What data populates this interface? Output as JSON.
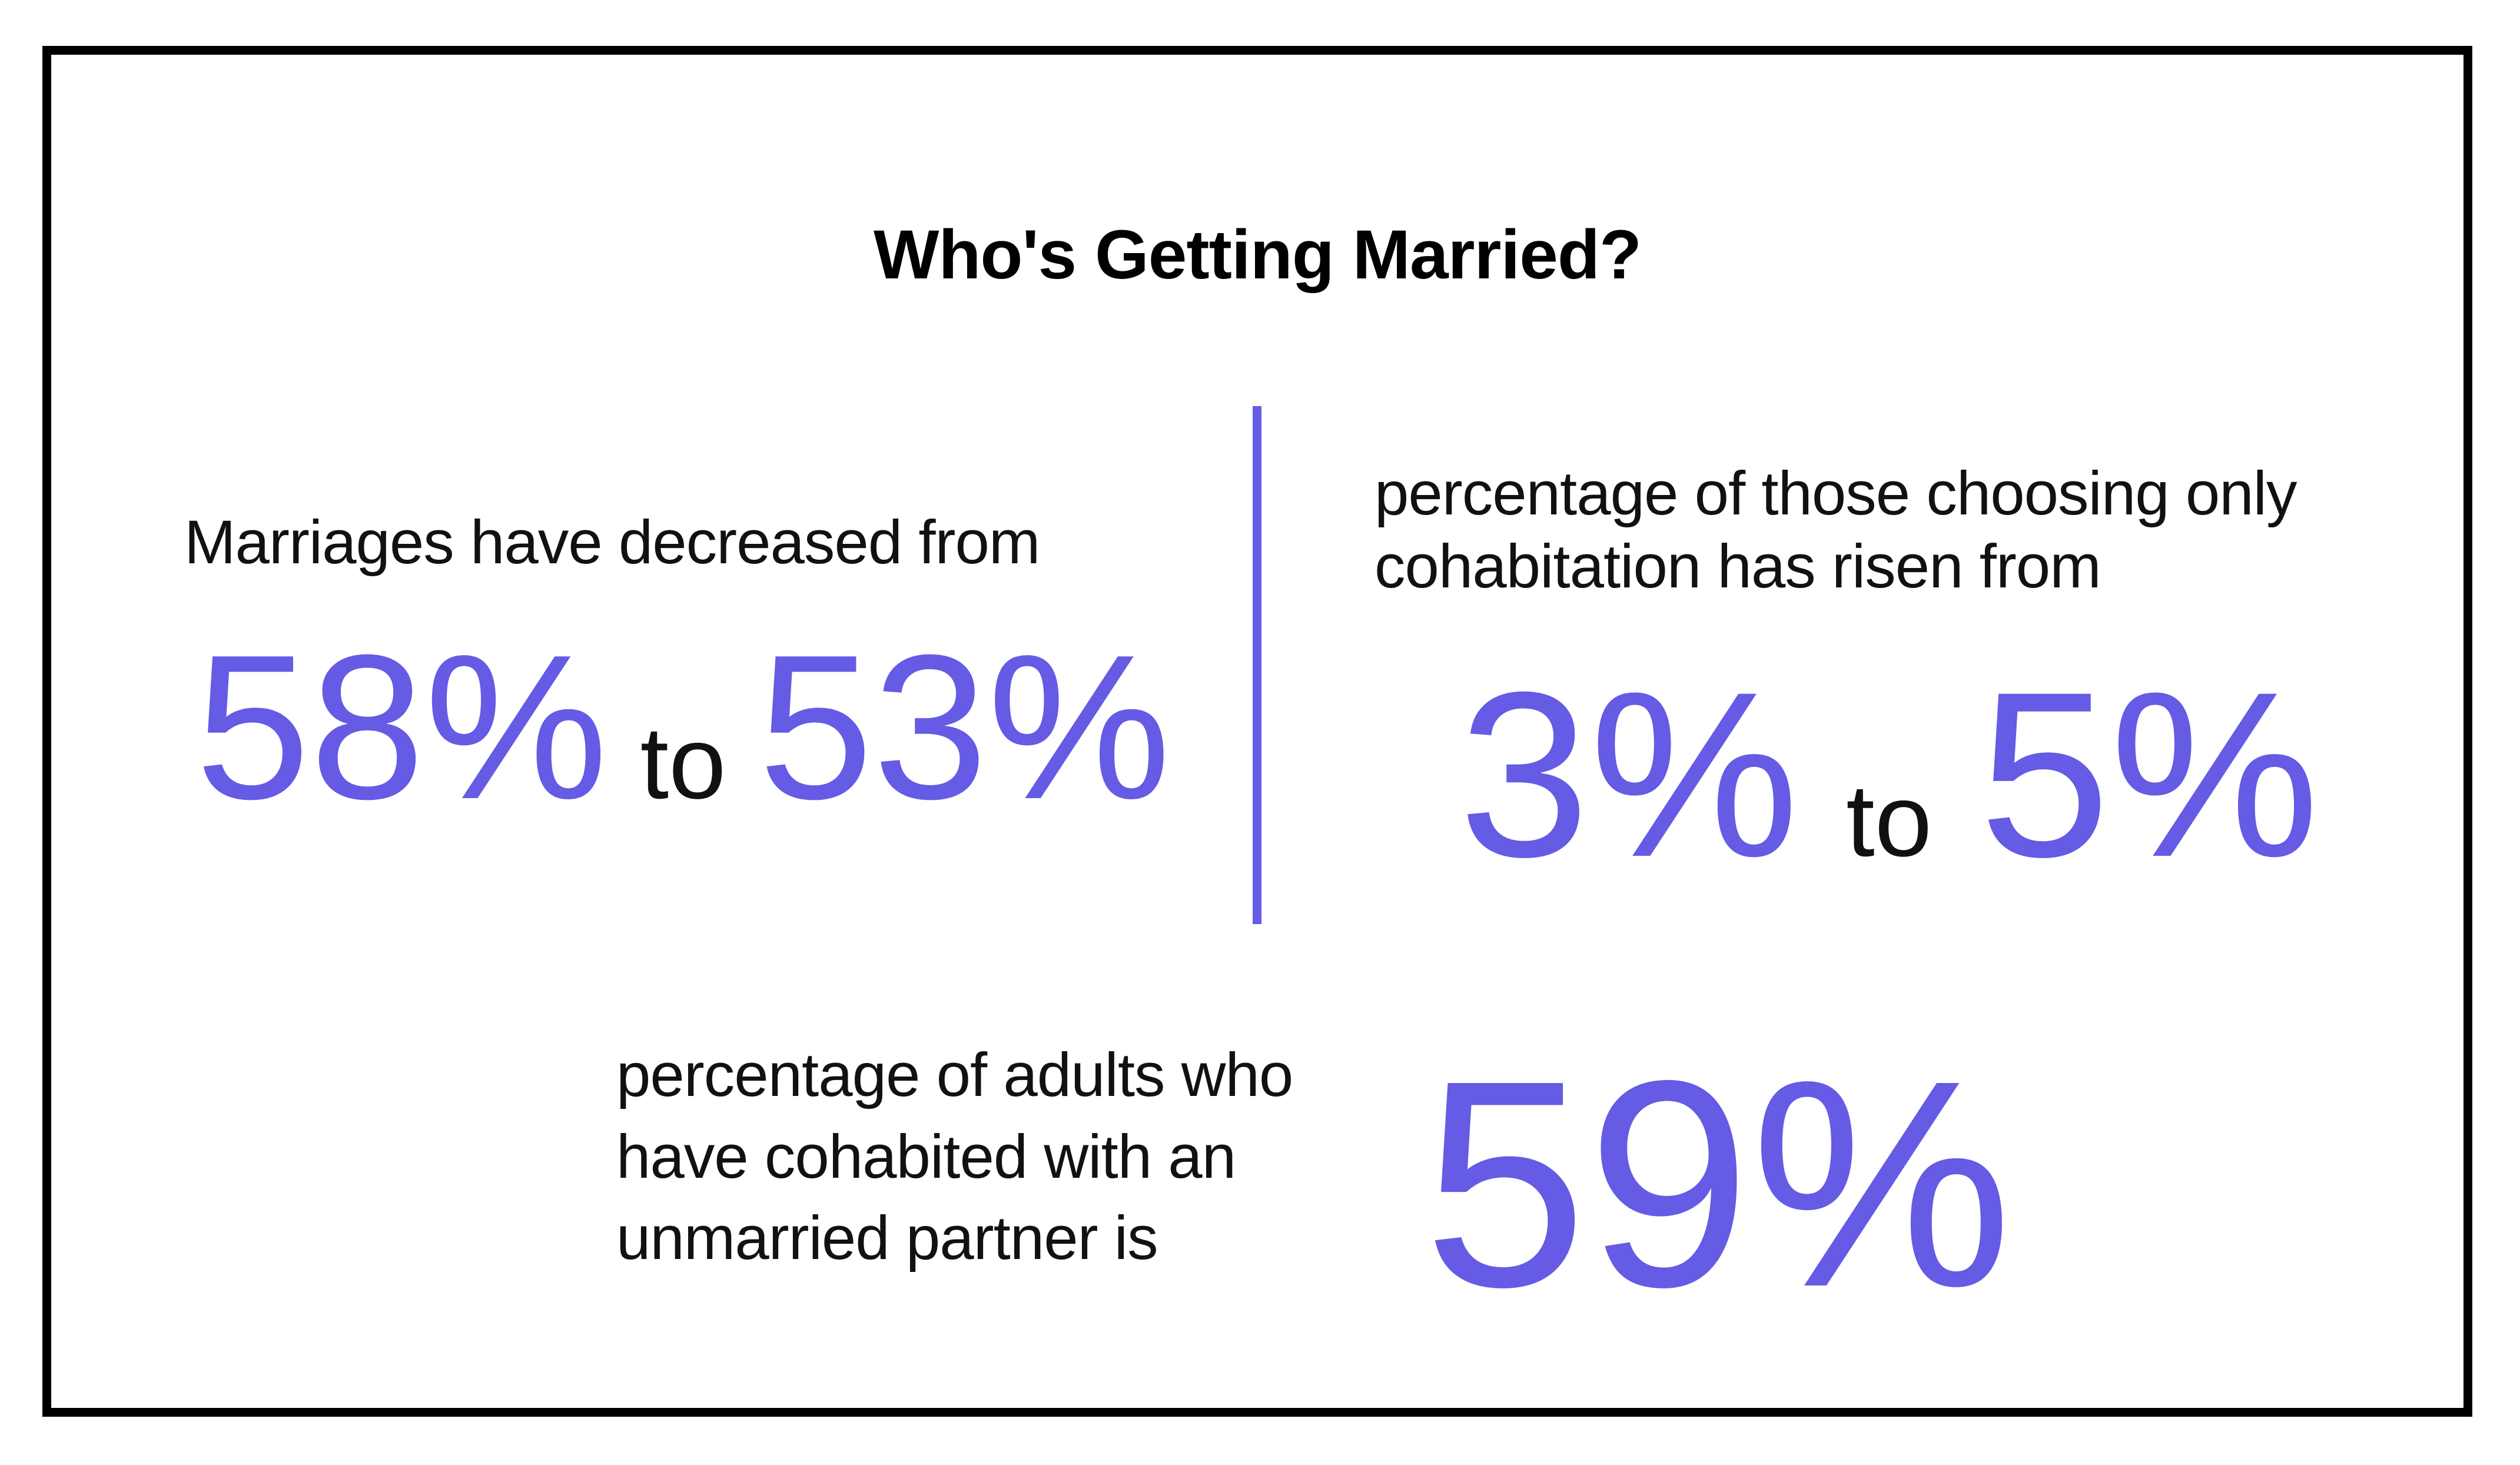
{
  "page": {
    "background": "#ffffff",
    "border_color": "#000000",
    "accent_color": "#655be4",
    "text_color": "#111111"
  },
  "chart_data": {
    "type": "table",
    "title": "Who's Getting Married?",
    "unit": "percent",
    "series": [
      {
        "name": "marriages",
        "caption": "Marriages have decreased from",
        "caption_lines": [
          "Marriages have decreased from"
        ],
        "change": "decreased",
        "from": 58,
        "to": 53,
        "from_label": "58%",
        "connector": "to",
        "to_label": "53%"
      },
      {
        "name": "choosing only cohabitation",
        "caption": "percentage of those choosing only cohabitation has risen from",
        "caption_lines": [
          "percentage of those choosing only",
          "cohabitation has risen from"
        ],
        "change": "risen",
        "from": 3,
        "to": 5,
        "from_label": "3%",
        "connector": "to",
        "to_label": "5%"
      },
      {
        "name": "adults who have cohabited with an unmarried partner",
        "caption": "percentage of adults who have cohabited with an unmarried partner is",
        "caption_lines": [
          "percentage of adults who",
          "have cohabited with an",
          "unmarried partner is"
        ],
        "value": 59,
        "value_label": "59%"
      }
    ]
  }
}
